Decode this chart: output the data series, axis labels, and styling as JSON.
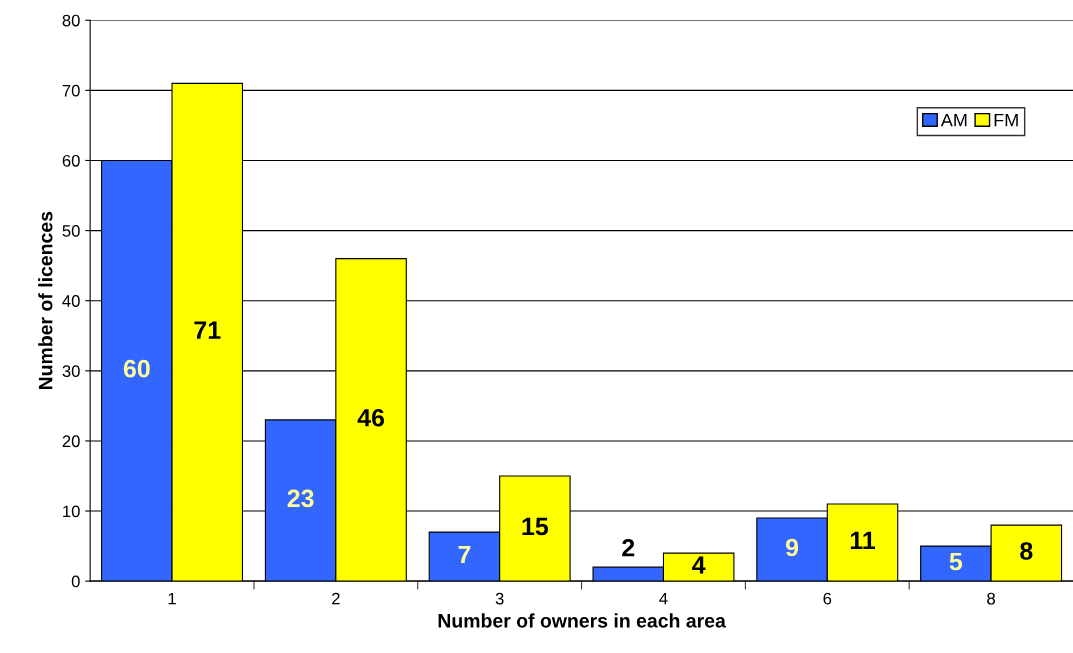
{
  "chart_data": {
    "type": "bar",
    "xlabel": "Number of owners in each area",
    "ylabel": "Number of licences",
    "categories": [
      "1",
      "2",
      "3",
      "4",
      "6",
      "8"
    ],
    "series": [
      {
        "name": "AM",
        "color": "#3366ff",
        "values": [
          60,
          23,
          7,
          2,
          9,
          5
        ]
      },
      {
        "name": "FM",
        "color": "#ffff00",
        "values": [
          71,
          46,
          15,
          4,
          11,
          8
        ]
      }
    ],
    "ylim": [
      0,
      80
    ],
    "yticks": [
      0,
      10,
      20,
      30,
      40,
      50,
      60,
      70,
      80
    ],
    "grid": "y",
    "legend": "top right",
    "data_labels": true
  }
}
